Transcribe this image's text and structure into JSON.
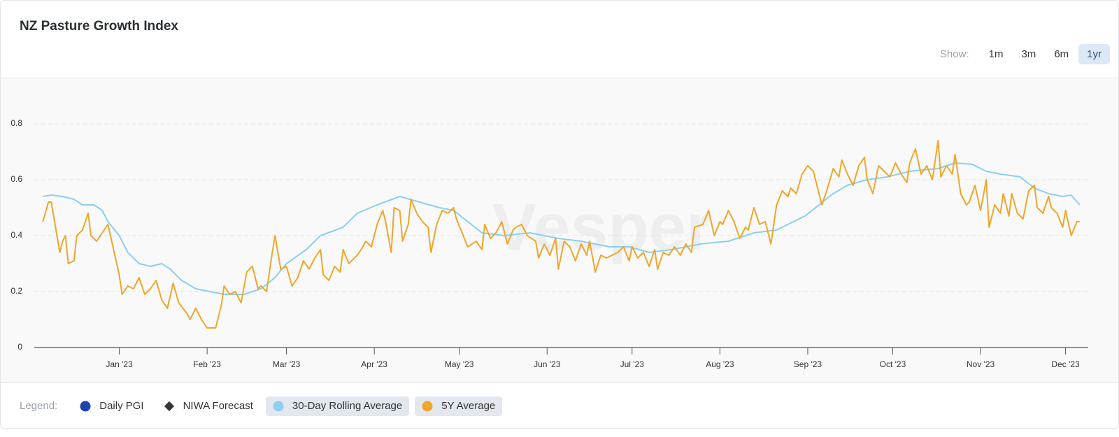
{
  "chart_data": {
    "type": "line",
    "title": "NZ Pasture Growth Index",
    "watermark": "Vesper",
    "controls": {
      "label": "Show:",
      "options": [
        "1m",
        "3m",
        "6m",
        "1yr"
      ],
      "selected": 3
    },
    "legend_label": "Legend:",
    "xlim": [
      -30,
      342
    ],
    "xticks": [
      {
        "value": 0,
        "label": "Jan '23"
      },
      {
        "value": 31,
        "label": "Feb '23"
      },
      {
        "value": 59,
        "label": "Mar '23"
      },
      {
        "value": 90,
        "label": "Apr '23"
      },
      {
        "value": 120,
        "label": "May '23"
      },
      {
        "value": 151,
        "label": "Jun '23"
      },
      {
        "value": 181,
        "label": "Jul '23"
      },
      {
        "value": 212,
        "label": "Aug '23"
      },
      {
        "value": 243,
        "label": "Sep '23"
      },
      {
        "value": 273,
        "label": "Oct '23"
      },
      {
        "value": 304,
        "label": "Nov '23"
      },
      {
        "value": 334,
        "label": "Dec '23"
      }
    ],
    "ylim": [
      0,
      0.95
    ],
    "yticks": [
      0,
      0.2,
      0.4,
      0.6,
      0.8
    ],
    "grid": true,
    "series": [
      {
        "name": "Daily PGI",
        "color": "#1f44b0",
        "marker": "circle",
        "visible": false
      },
      {
        "name": "NIWA Forecast",
        "color": "#33363d",
        "marker": "diamond",
        "visible": false
      },
      {
        "name": "30-Day Rolling Average",
        "color": "#8ccff0",
        "marker": "circle",
        "visible": true,
        "x": [
          -27,
          -24,
          -20,
          -16,
          -13,
          -9,
          -6,
          -4,
          0,
          3,
          7,
          11,
          15,
          18,
          22,
          27,
          32,
          37,
          44,
          50,
          55,
          59,
          66,
          71,
          79,
          84,
          91,
          99,
          106,
          113,
          118,
          123,
          128,
          136,
          145,
          155,
          163,
          173,
          180,
          187,
          195,
          205,
          215,
          224,
          232,
          242,
          247,
          252,
          257,
          264,
          271,
          279,
          289,
          295,
          301,
          306,
          311,
          318,
          323,
          328,
          333,
          336,
          339
        ],
        "values": [
          0.54,
          0.545,
          0.54,
          0.53,
          0.51,
          0.51,
          0.49,
          0.45,
          0.4,
          0.34,
          0.3,
          0.29,
          0.3,
          0.28,
          0.24,
          0.21,
          0.2,
          0.19,
          0.19,
          0.21,
          0.25,
          0.3,
          0.35,
          0.4,
          0.43,
          0.48,
          0.51,
          0.54,
          0.52,
          0.5,
          0.49,
          0.45,
          0.41,
          0.4,
          0.41,
          0.39,
          0.38,
          0.36,
          0.36,
          0.34,
          0.35,
          0.37,
          0.38,
          0.41,
          0.42,
          0.47,
          0.51,
          0.55,
          0.58,
          0.6,
          0.61,
          0.63,
          0.64,
          0.66,
          0.655,
          0.63,
          0.62,
          0.61,
          0.57,
          0.55,
          0.54,
          0.545,
          0.51
        ]
      },
      {
        "name": "5Y Average",
        "color": "#efa62a",
        "marker": "circle",
        "visible": true,
        "x": [
          -27,
          -25,
          -24,
          -21,
          -20,
          -19,
          -18,
          -16,
          -15,
          -13,
          -11,
          -10,
          -8,
          -6,
          -4,
          -2,
          0,
          1,
          3,
          5,
          7,
          9,
          11,
          13,
          15,
          17,
          19,
          21,
          24,
          25,
          27,
          29,
          31,
          34,
          36,
          37,
          39,
          41,
          43,
          45,
          47,
          49,
          50,
          52,
          54,
          55,
          57,
          59,
          61,
          63,
          65,
          67,
          69,
          71,
          72,
          74,
          76,
          78,
          79,
          81,
          84,
          86,
          87,
          89,
          91,
          93,
          94,
          96,
          97,
          99,
          100,
          102,
          103,
          105,
          107,
          109,
          110,
          112,
          114,
          116,
          118,
          119,
          121,
          123,
          126,
          128,
          129,
          131,
          133,
          135,
          137,
          139,
          140,
          142,
          144,
          147,
          148,
          150,
          152,
          154,
          155,
          157,
          159,
          161,
          163,
          165,
          166,
          168,
          170,
          172,
          174,
          176,
          178,
          180,
          181,
          183,
          185,
          187,
          189,
          190,
          192,
          194,
          196,
          198,
          200,
          202,
          203,
          206,
          208,
          210,
          212,
          213,
          215,
          217,
          219,
          221,
          222,
          224,
          226,
          228,
          230,
          232,
          234,
          236,
          237,
          239,
          241,
          243,
          245,
          247,
          248,
          250,
          252,
          254,
          255,
          257,
          259,
          261,
          263,
          264,
          266,
          268,
          270,
          272,
          274,
          276,
          278,
          279,
          281,
          283,
          285,
          287,
          289,
          290,
          292,
          294,
          295,
          297,
          299,
          300,
          302,
          304,
          306,
          307,
          309,
          311,
          312,
          314,
          315,
          317,
          319,
          321,
          323,
          324,
          326,
          328,
          329,
          331,
          333,
          334,
          336,
          338,
          339
        ],
        "values": [
          0.45,
          0.52,
          0.52,
          0.34,
          0.38,
          0.4,
          0.3,
          0.31,
          0.4,
          0.42,
          0.48,
          0.4,
          0.38,
          0.41,
          0.44,
          0.35,
          0.26,
          0.19,
          0.22,
          0.21,
          0.25,
          0.19,
          0.21,
          0.24,
          0.17,
          0.14,
          0.23,
          0.16,
          0.12,
          0.1,
          0.14,
          0.1,
          0.07,
          0.07,
          0.15,
          0.22,
          0.19,
          0.2,
          0.16,
          0.27,
          0.29,
          0.21,
          0.22,
          0.2,
          0.34,
          0.4,
          0.28,
          0.29,
          0.22,
          0.25,
          0.31,
          0.28,
          0.32,
          0.35,
          0.26,
          0.24,
          0.29,
          0.27,
          0.35,
          0.3,
          0.33,
          0.36,
          0.38,
          0.36,
          0.44,
          0.49,
          0.45,
          0.34,
          0.5,
          0.49,
          0.38,
          0.44,
          0.53,
          0.48,
          0.45,
          0.43,
          0.34,
          0.44,
          0.49,
          0.48,
          0.5,
          0.46,
          0.41,
          0.36,
          0.38,
          0.35,
          0.44,
          0.39,
          0.41,
          0.45,
          0.37,
          0.42,
          0.43,
          0.44,
          0.4,
          0.38,
          0.32,
          0.37,
          0.33,
          0.39,
          0.28,
          0.38,
          0.36,
          0.31,
          0.37,
          0.33,
          0.38,
          0.27,
          0.33,
          0.32,
          0.33,
          0.34,
          0.36,
          0.31,
          0.36,
          0.32,
          0.34,
          0.29,
          0.35,
          0.28,
          0.34,
          0.33,
          0.36,
          0.33,
          0.37,
          0.34,
          0.43,
          0.44,
          0.49,
          0.4,
          0.45,
          0.44,
          0.49,
          0.45,
          0.39,
          0.43,
          0.42,
          0.5,
          0.44,
          0.45,
          0.37,
          0.51,
          0.56,
          0.54,
          0.57,
          0.55,
          0.62,
          0.65,
          0.63,
          0.55,
          0.51,
          0.57,
          0.64,
          0.61,
          0.67,
          0.62,
          0.58,
          0.65,
          0.68,
          0.6,
          0.55,
          0.65,
          0.63,
          0.61,
          0.66,
          0.62,
          0.59,
          0.66,
          0.71,
          0.62,
          0.65,
          0.6,
          0.74,
          0.61,
          0.65,
          0.62,
          0.69,
          0.55,
          0.51,
          0.52,
          0.58,
          0.49,
          0.6,
          0.43,
          0.51,
          0.48,
          0.55,
          0.47,
          0.55,
          0.48,
          0.46,
          0.56,
          0.58,
          0.5,
          0.48,
          0.54,
          0.5,
          0.48,
          0.43,
          0.49,
          0.4,
          0.45,
          0.45
        ]
      }
    ]
  }
}
